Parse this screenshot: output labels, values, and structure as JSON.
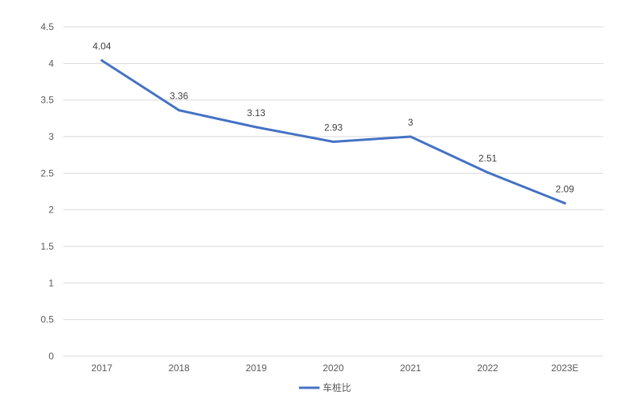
{
  "chart_data": {
    "type": "line",
    "title": "",
    "xlabel": "",
    "ylabel": "",
    "categories": [
      "2017",
      "2018",
      "2019",
      "2020",
      "2021",
      "2022",
      "2023E"
    ],
    "series": [
      {
        "name": "车桩比",
        "values": [
          4.04,
          3.36,
          3.13,
          2.93,
          3,
          2.51,
          2.09
        ],
        "labels": [
          "4.04",
          "3.36",
          "3.13",
          "2.93",
          "3",
          "2.51",
          "2.09"
        ],
        "color": "#4472c4"
      }
    ],
    "ylim": [
      0,
      4.5
    ],
    "yticks": [
      "0",
      "0.5",
      "1",
      "1.5",
      "2",
      "2.5",
      "3",
      "3.5",
      "4",
      "4.5"
    ],
    "grid": true,
    "legend_position": "bottom"
  }
}
